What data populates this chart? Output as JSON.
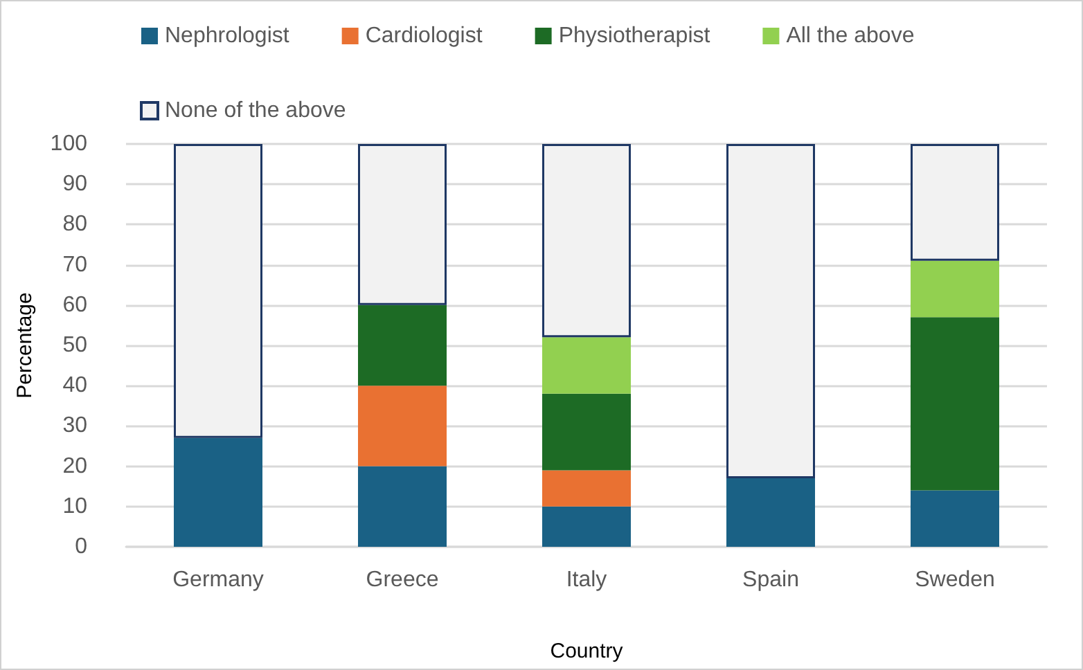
{
  "chart_data": {
    "type": "bar",
    "stacked": true,
    "xlabel": "Country",
    "ylabel": "Percentage",
    "categories": [
      "Germany",
      "Greece",
      "Italy",
      "Spain",
      "Sweden"
    ],
    "series": [
      {
        "name": "Nephrologist",
        "color": "#1a6185",
        "values": [
          27,
          20,
          10,
          17,
          14
        ]
      },
      {
        "name": "Cardiologist",
        "color": "#e97132",
        "values": [
          0,
          20,
          9,
          0,
          0
        ]
      },
      {
        "name": "Physiotherapist",
        "color": "#1d6b25",
        "values": [
          0,
          20,
          19,
          0,
          43
        ]
      },
      {
        "name": "All the above",
        "color": "#92d050",
        "values": [
          0,
          0,
          14,
          0,
          14
        ]
      },
      {
        "name": "None of the above",
        "color": "#f2f2f2",
        "values": [
          73,
          40,
          48,
          83,
          29
        ]
      }
    ],
    "ylim": [
      0,
      100
    ],
    "yticks": [
      0,
      10,
      20,
      30,
      40,
      50,
      60,
      70,
      80,
      90,
      100
    ],
    "grid": "y",
    "legend": "top"
  }
}
